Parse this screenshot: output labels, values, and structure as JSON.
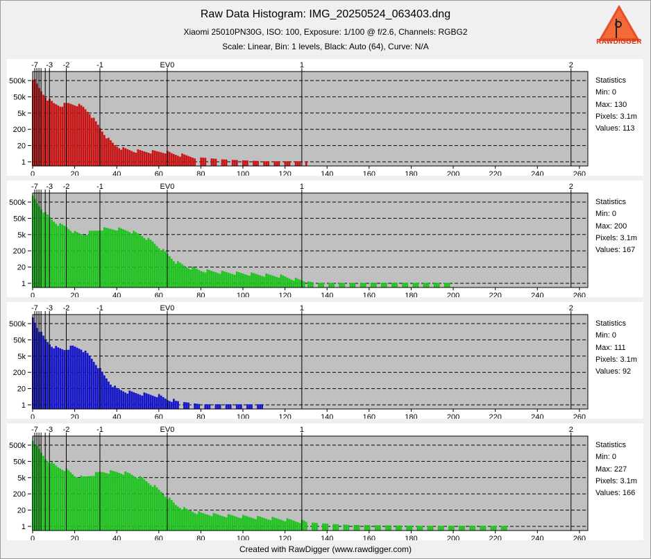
{
  "header": {
    "title": "Raw Data Histogram: IMG_20250524_063403.dng",
    "subtitle": "Xiaomi 25010PN30G, ISO: 100, Exposure: 1/100 @ f/2.6, Channels: RGBG2",
    "scale_line": "Scale: Linear, Bin: 1 levels, Black: Auto (64), Curve: N/A"
  },
  "logo": {
    "text": "RAWDIGGER",
    "color": "#e8502a"
  },
  "footer": "Created with RawDigger (www.rawdigger.com)",
  "colors": {
    "plot_bg": "#c0c0c0",
    "red": "#c81414",
    "green": "#1ec31e",
    "blue": "#1414c8",
    "ev_line": "#000000",
    "grid": "#000000"
  },
  "chart_data": [
    {
      "type": "bar",
      "channel": "R",
      "color": "#c81414",
      "xlim": [
        0,
        264
      ],
      "ev_marks": [
        {
          "label": "-7",
          "x": 1
        },
        {
          "label": "",
          "x": 2
        },
        {
          "label": "",
          "x": 3
        },
        {
          "label": "",
          "x": 4
        },
        {
          "label": "",
          "x": 6
        },
        {
          "label": "-3",
          "x": 8
        },
        {
          "label": "-2",
          "x": 16
        },
        {
          "label": "-1",
          "x": 32
        },
        {
          "label": "EV0",
          "x": 64
        },
        {
          "label": "1",
          "x": 128
        },
        {
          "label": "2",
          "x": 256
        }
      ],
      "yticks": [
        "500k",
        "50k",
        "5k",
        "200",
        "20",
        "1"
      ],
      "xticks": [
        0,
        20,
        40,
        60,
        80,
        100,
        120,
        140,
        160,
        180,
        200,
        220,
        240,
        260
      ],
      "stats": {
        "heading": "Statistics",
        "min": "Min: 0",
        "max": "Max: 130",
        "pixels": "Pixels: 3.1m",
        "values": "Values: 113"
      },
      "hist": {
        "max": 130,
        "anchors": [
          [
            0,
            0.93
          ],
          [
            1,
            0.9
          ],
          [
            2,
            0.86
          ],
          [
            3,
            0.82
          ],
          [
            5,
            0.76
          ],
          [
            7,
            0.71
          ],
          [
            10,
            0.66
          ],
          [
            13,
            0.64
          ],
          [
            17,
            0.66
          ],
          [
            21,
            0.65
          ],
          [
            24,
            0.62
          ],
          [
            27,
            0.56
          ],
          [
            30,
            0.46
          ],
          [
            33,
            0.37
          ],
          [
            36,
            0.28
          ],
          [
            39,
            0.22
          ],
          [
            43,
            0.18
          ],
          [
            48,
            0.16
          ],
          [
            56,
            0.15
          ],
          [
            63,
            0.15
          ],
          [
            66,
            0.13
          ],
          [
            72,
            0.11
          ],
          [
            80,
            0.09
          ],
          [
            90,
            0.07
          ],
          [
            110,
            0.05
          ],
          [
            130,
            0.05
          ]
        ],
        "sparse_from": 78
      }
    },
    {
      "type": "bar",
      "channel": "G",
      "color": "#1ec31e",
      "xlim": [
        0,
        264
      ],
      "ev_marks": [
        {
          "label": "-7",
          "x": 1
        },
        {
          "label": "",
          "x": 2
        },
        {
          "label": "",
          "x": 3
        },
        {
          "label": "",
          "x": 4
        },
        {
          "label": "",
          "x": 6
        },
        {
          "label": "-3",
          "x": 8
        },
        {
          "label": "-2",
          "x": 16
        },
        {
          "label": "-1",
          "x": 32
        },
        {
          "label": "EV0",
          "x": 64
        },
        {
          "label": "1",
          "x": 128
        },
        {
          "label": "2",
          "x": 256
        }
      ],
      "yticks": [
        "500k",
        "50k",
        "5k",
        "200",
        "20",
        "1"
      ],
      "xticks": [
        0,
        20,
        40,
        60,
        80,
        100,
        120,
        140,
        160,
        180,
        200,
        220,
        240,
        260
      ],
      "stats": {
        "heading": "Statistics",
        "min": "Min: 0",
        "max": "Max: 200",
        "pixels": "Pixels: 3.1m",
        "values": "Values: 167"
      },
      "hist": {
        "max": 200,
        "anchors": [
          [
            0,
            0.96
          ],
          [
            1,
            0.93
          ],
          [
            2,
            0.89
          ],
          [
            4,
            0.84
          ],
          [
            6,
            0.78
          ],
          [
            9,
            0.72
          ],
          [
            12,
            0.67
          ],
          [
            16,
            0.64
          ],
          [
            20,
            0.58
          ],
          [
            24,
            0.56
          ],
          [
            28,
            0.59
          ],
          [
            33,
            0.62
          ],
          [
            40,
            0.62
          ],
          [
            46,
            0.6
          ],
          [
            52,
            0.55
          ],
          [
            57,
            0.48
          ],
          [
            61,
            0.41
          ],
          [
            64,
            0.35
          ],
          [
            68,
            0.27
          ],
          [
            73,
            0.22
          ],
          [
            80,
            0.18
          ],
          [
            90,
            0.16
          ],
          [
            105,
            0.14
          ],
          [
            118,
            0.12
          ],
          [
            126,
            0.08
          ],
          [
            135,
            0.05
          ],
          [
            200,
            0.05
          ]
        ],
        "sparse_from": 130
      }
    },
    {
      "type": "bar",
      "channel": "B",
      "color": "#1414c8",
      "xlim": [
        0,
        264
      ],
      "ev_marks": [
        {
          "label": "-7",
          "x": 1
        },
        {
          "label": "",
          "x": 2
        },
        {
          "label": "",
          "x": 3
        },
        {
          "label": "",
          "x": 4
        },
        {
          "label": "",
          "x": 6
        },
        {
          "label": "-3",
          "x": 8
        },
        {
          "label": "-2",
          "x": 16
        },
        {
          "label": "-1",
          "x": 32
        },
        {
          "label": "EV0",
          "x": 64
        },
        {
          "label": "1",
          "x": 128
        },
        {
          "label": "2",
          "x": 256
        }
      ],
      "yticks": [
        "500k",
        "50k",
        "5k",
        "200",
        "20",
        "1"
      ],
      "xticks": [
        0,
        20,
        40,
        60,
        80,
        100,
        120,
        140,
        160,
        180,
        200,
        220,
        240,
        260
      ],
      "stats": {
        "heading": "Statistics",
        "min": "Min: 0",
        "max": "Max: 111",
        "pixels": "Pixels: 3.1m",
        "values": "Values: 92"
      },
      "hist": {
        "max": 111,
        "anchors": [
          [
            0,
            0.97
          ],
          [
            1,
            0.92
          ],
          [
            2,
            0.87
          ],
          [
            4,
            0.8
          ],
          [
            6,
            0.73
          ],
          [
            9,
            0.67
          ],
          [
            12,
            0.64
          ],
          [
            15,
            0.63
          ],
          [
            19,
            0.66
          ],
          [
            23,
            0.64
          ],
          [
            27,
            0.56
          ],
          [
            31,
            0.45
          ],
          [
            34,
            0.35
          ],
          [
            37,
            0.27
          ],
          [
            40,
            0.21
          ],
          [
            45,
            0.18
          ],
          [
            52,
            0.16
          ],
          [
            60,
            0.14
          ],
          [
            64,
            0.1
          ],
          [
            70,
            0.08
          ],
          [
            80,
            0.05
          ],
          [
            111,
            0.05
          ]
        ],
        "sparse_from": 68
      }
    },
    {
      "type": "bar",
      "channel": "G2",
      "color": "#1ec31e",
      "xlim": [
        0,
        264
      ],
      "ev_marks": [
        {
          "label": "-7",
          "x": 1
        },
        {
          "label": "",
          "x": 2
        },
        {
          "label": "",
          "x": 3
        },
        {
          "label": "",
          "x": 4
        },
        {
          "label": "",
          "x": 6
        },
        {
          "label": "-3",
          "x": 8
        },
        {
          "label": "-2",
          "x": 16
        },
        {
          "label": "-1",
          "x": 32
        },
        {
          "label": "EV0",
          "x": 64
        },
        {
          "label": "1",
          "x": 128
        },
        {
          "label": "2",
          "x": 256
        }
      ],
      "yticks": [
        "500k",
        "50k",
        "5k",
        "200",
        "20",
        "1"
      ],
      "xticks": [
        0,
        20,
        40,
        60,
        80,
        100,
        120,
        140,
        160,
        180,
        200,
        220,
        240,
        260
      ],
      "stats": {
        "heading": "Statistics",
        "min": "Min: 0",
        "max": "Max: 227",
        "pixels": "Pixels: 3.1m",
        "values": "Values: 166"
      },
      "hist": {
        "max": 227,
        "anchors": [
          [
            0,
            0.96
          ],
          [
            1,
            0.92
          ],
          [
            2,
            0.88
          ],
          [
            4,
            0.82
          ],
          [
            6,
            0.76
          ],
          [
            9,
            0.71
          ],
          [
            12,
            0.67
          ],
          [
            16,
            0.64
          ],
          [
            20,
            0.58
          ],
          [
            24,
            0.56
          ],
          [
            28,
            0.59
          ],
          [
            33,
            0.62
          ],
          [
            40,
            0.62
          ],
          [
            46,
            0.6
          ],
          [
            52,
            0.55
          ],
          [
            57,
            0.48
          ],
          [
            61,
            0.41
          ],
          [
            64,
            0.35
          ],
          [
            68,
            0.27
          ],
          [
            73,
            0.22
          ],
          [
            80,
            0.18
          ],
          [
            90,
            0.16
          ],
          [
            105,
            0.14
          ],
          [
            118,
            0.12
          ],
          [
            126,
            0.1
          ],
          [
            135,
            0.08
          ],
          [
            150,
            0.06
          ],
          [
            185,
            0.05
          ],
          [
            227,
            0.05
          ]
        ],
        "sparse_from": 130
      }
    }
  ]
}
